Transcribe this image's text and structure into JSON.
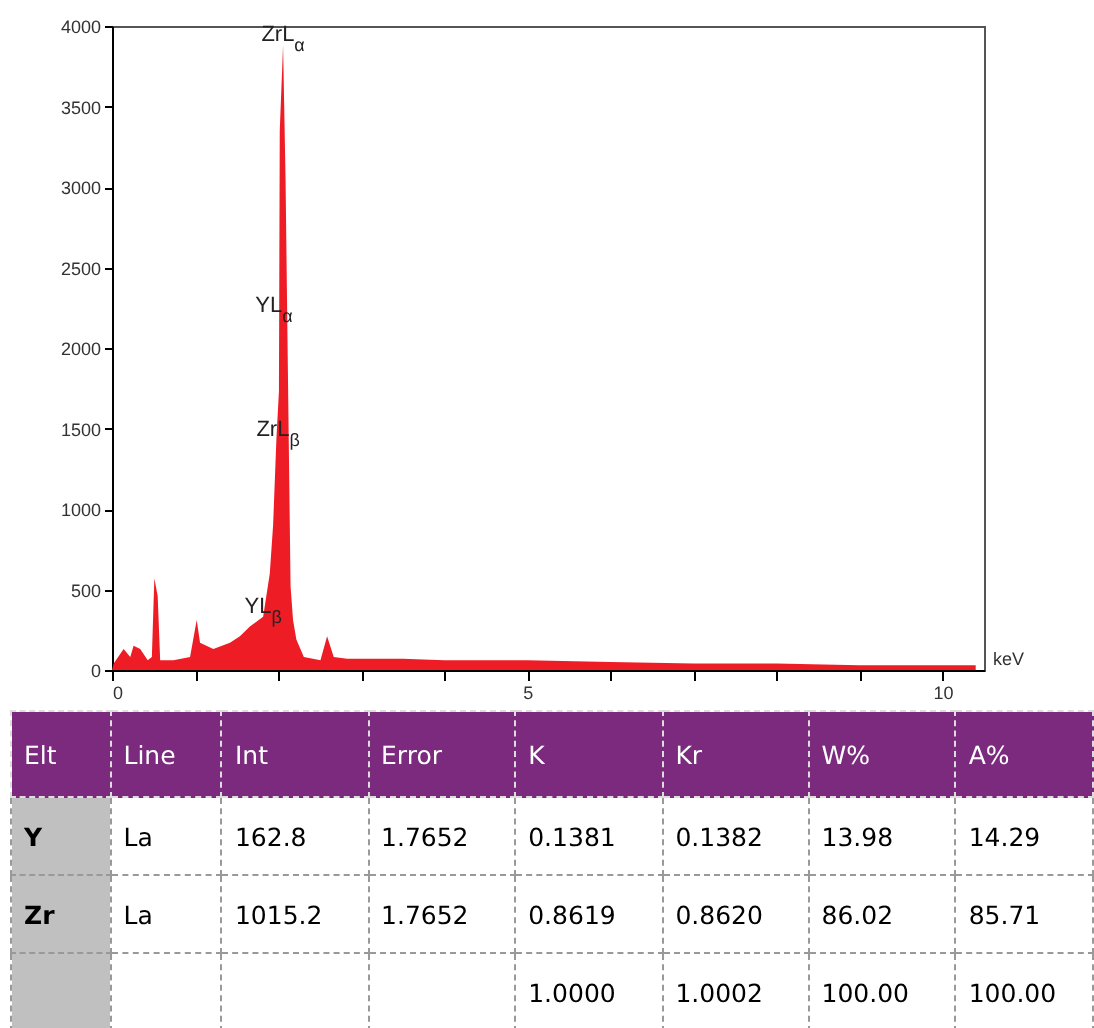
{
  "chart_data": [
    {
      "type": "area",
      "xlabel": "keV",
      "color": "#ee1c25",
      "x": [
        0,
        0.02,
        0.14,
        0.22,
        0.26,
        0.34,
        0.43,
        0.48,
        0.51,
        0.55,
        0.58,
        0.74,
        0.94,
        1.02,
        1.06,
        1.22,
        1.42,
        1.54,
        1.66,
        1.82,
        1.9,
        1.94,
        1.98,
        2.01,
        2.02,
        2.06,
        2.09,
        2.12,
        2.15,
        2.18,
        2.22,
        2.31,
        2.51,
        2.59,
        2.67,
        2.83,
        3.5,
        4,
        5,
        6,
        7,
        8,
        9,
        10,
        10.4
      ],
      "values": [
        0,
        40,
        130,
        80,
        150,
        130,
        60,
        80,
        570,
        460,
        60,
        60,
        80,
        310,
        170,
        130,
        170,
        210,
        270,
        330,
        600,
        900,
        1440,
        1730,
        3350,
        3880,
        3040,
        1770,
        520,
        310,
        190,
        80,
        60,
        210,
        80,
        70,
        70,
        60,
        60,
        50,
        40,
        40,
        30,
        30,
        30
      ],
      "xlim": [
        0,
        10.5
      ],
      "xticks": [
        0,
        {
          "value": 1,
          "label": null
        },
        {
          "value": 2,
          "label": null
        },
        {
          "value": 3,
          "label": null
        },
        {
          "value": 4,
          "label": null
        },
        5,
        {
          "value": 6,
          "label": null
        },
        {
          "value": 7,
          "label": null
        },
        {
          "value": 8,
          "label": null
        },
        {
          "value": 9,
          "label": null
        },
        10
      ],
      "ylim": [
        0,
        4000
      ],
      "yticks": [
        0,
        500,
        1000,
        1500,
        2000,
        2500,
        3000,
        3500,
        4000
      ],
      "annotations": [
        {
          "text": "ZrL$_{α}$",
          "x": 2.06,
          "y": 3880
        },
        {
          "text": "YL$_{α}$",
          "x": 1.95,
          "y": 2200
        },
        {
          "text": "ZrL$_{β}$",
          "x": 2.0,
          "y": 1430
        },
        {
          "text": "YL$_{β}$",
          "x": 1.82,
          "y": 330
        }
      ]
    },
    {
      "type": "other",
      "categories": [
        "Elt",
        "Line",
        "Int",
        "Error",
        "K",
        "Kr",
        "W%",
        "A%"
      ],
      "y_categories": [
        "Y",
        "Zr",
        null
      ],
      "cell_labels": [
        [
          "La",
          "162.8",
          "1.7652",
          "0.1381",
          "0.1382",
          "13.98",
          "14.29"
        ],
        [
          "La",
          "1015.2",
          "1.7652",
          "0.8619",
          "0.8620",
          "86.02",
          "85.71"
        ],
        [
          null,
          null,
          null,
          "1.0000",
          "1.0002",
          "100.00",
          "100.00"
        ]
      ]
    }
  ]
}
